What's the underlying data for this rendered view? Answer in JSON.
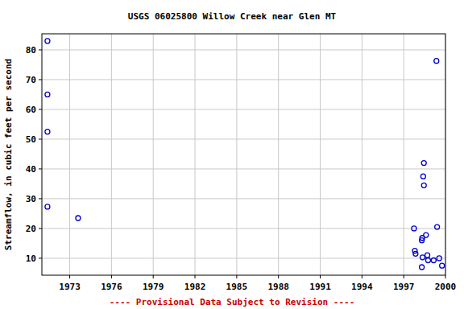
{
  "chart_data": {
    "type": "scatter",
    "title": "USGS 06025800 Willow Creek near Glen MT",
    "y_label": "Streamflow, in cubic feet per second",
    "footer": "---- Provisional Data Subject to Revision ----",
    "x": [
      1971.4,
      1971.4,
      1971.4,
      1971.4,
      1973.6,
      1997.74,
      1997.8,
      1997.85,
      1998.3,
      1998.35,
      1998.3,
      1998.33,
      1998.4,
      1998.45,
      1998.45,
      1998.6,
      1998.7,
      1998.75,
      1999.15,
      1999.35,
      1999.4,
      1999.55,
      1999.75
    ],
    "values": [
      83,
      65,
      52.5,
      27.3,
      23.5,
      20,
      12.5,
      11.5,
      7,
      10.3,
      16,
      16.8,
      37.5,
      42,
      34.5,
      17.8,
      11,
      9.3,
      9.3,
      76.3,
      20.5,
      10,
      7.5
    ],
    "color": "#0000cc",
    "marker": "open-circle",
    "xlim": [
      1971,
      2000
    ],
    "xticks": [
      1973,
      1976,
      1979,
      1982,
      1985,
      1988,
      1991,
      1994,
      1997,
      2000
    ],
    "ylim": [
      4.3,
      85.4
    ],
    "yticks": [
      10,
      20,
      30,
      40,
      50,
      60,
      70,
      80
    ],
    "grid": true
  }
}
